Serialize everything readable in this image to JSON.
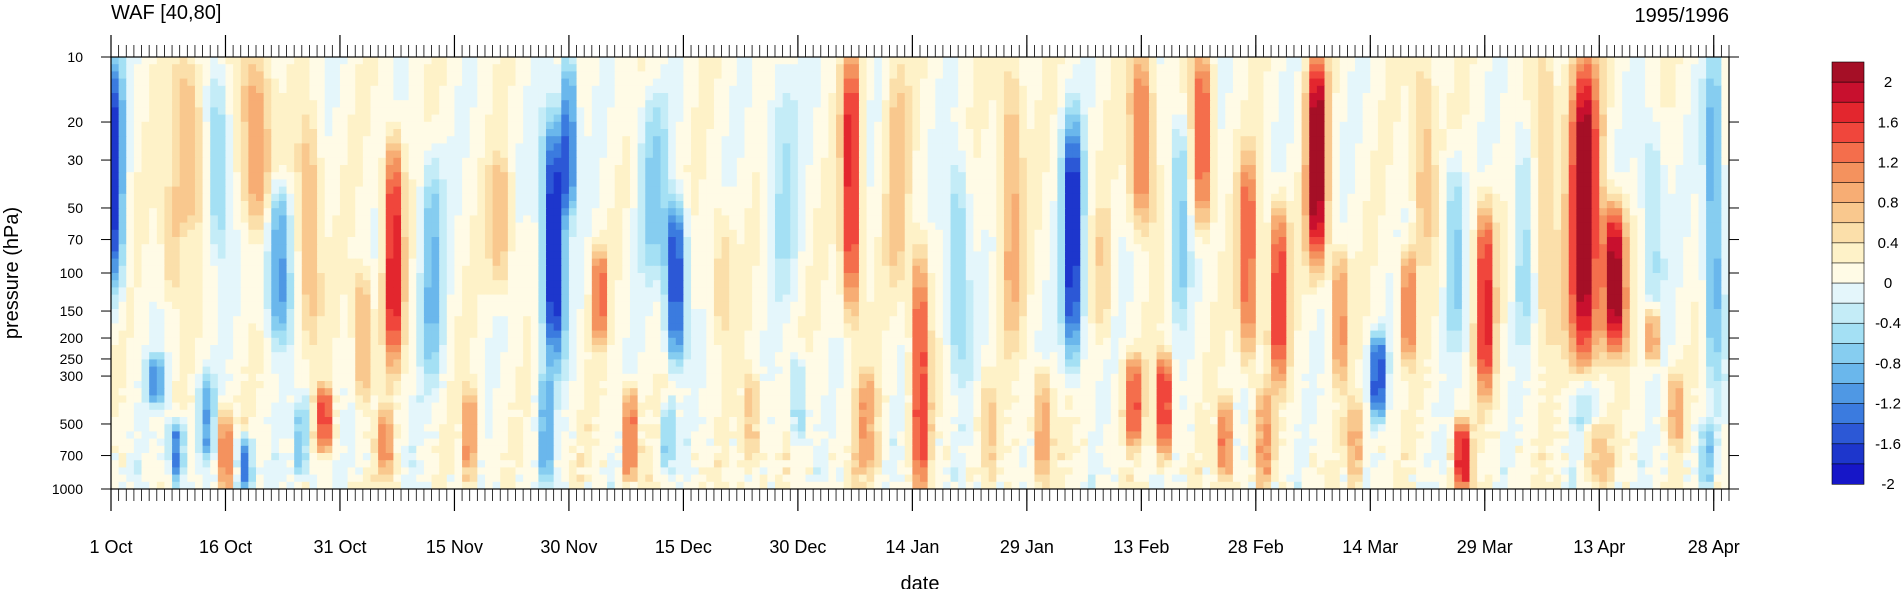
{
  "chart_data": {
    "type": "heatmap",
    "title_left": "WAF [40,80]",
    "title_right": "1995/1996",
    "xlabel": "date",
    "ylabel": "pressure (hPa)",
    "x_ticks": [
      "1 Oct",
      "16 Oct",
      "31 Oct",
      "15 Nov",
      "30 Nov",
      "15 Dec",
      "30 Dec",
      "14 Jan",
      "29 Jan",
      "13 Feb",
      "28 Feb",
      "14 Mar",
      "29 Mar",
      "13 Apr",
      "28 Apr"
    ],
    "x_tick_days": [
      0,
      15,
      30,
      45,
      60,
      75,
      90,
      105,
      120,
      135,
      150,
      165,
      180,
      195,
      210
    ],
    "x_range_days": [
      0,
      212
    ],
    "y_ticks": [
      10,
      20,
      30,
      50,
      70,
      100,
      150,
      200,
      250,
      300,
      500,
      700,
      1000
    ],
    "y_range": [
      10,
      1000
    ],
    "y_scale": "log",
    "colorbar": {
      "label_values": [
        "2",
        "1.6",
        "1.2",
        "0.8",
        "0.4",
        "0",
        "-0.4",
        "-0.8",
        "-1.2",
        "-1.6",
        "-2"
      ],
      "colors": [
        "#a50f26",
        "#c8102e",
        "#e3262e",
        "#f0463c",
        "#f46e4c",
        "#f4925e",
        "#f7ad74",
        "#f9c88e",
        "#fbdfaa",
        "#fef2c8",
        "#fffbe6",
        "#e4f6fb",
        "#c4ecf7",
        "#a4e0f4",
        "#86cdf0",
        "#6ab7ec",
        "#4f98e4",
        "#3b7bdf",
        "#2c58d6",
        "#1d36cc",
        "#1616c8"
      ]
    },
    "features": [
      {
        "day": 0.5,
        "p_top": 10,
        "p_bot": 120,
        "v": -1.7,
        "w": 1.2
      },
      {
        "day": 6,
        "p_top": 250,
        "p_bot": 400,
        "v": -1.2,
        "w": 1.2
      },
      {
        "day": 8,
        "p_top": 40,
        "p_bot": 130,
        "v": 0.6,
        "w": 1.4
      },
      {
        "day": 8.5,
        "p_top": 500,
        "p_bot": 900,
        "v": -1.5,
        "w": 1
      },
      {
        "day": 10,
        "p_top": 10,
        "p_bot": 60,
        "v": 0.8,
        "w": 2
      },
      {
        "day": 12.5,
        "p_top": 300,
        "p_bot": 700,
        "v": -1.0,
        "w": 1
      },
      {
        "day": 14,
        "p_top": 12,
        "p_bot": 80,
        "v": -0.8,
        "w": 1.5
      },
      {
        "day": 15,
        "p_top": 450,
        "p_bot": 1000,
        "v": 1.4,
        "w": 0.8
      },
      {
        "day": 17.5,
        "p_top": 600,
        "p_bot": 1000,
        "v": -1.5,
        "w": 1
      },
      {
        "day": 19,
        "p_top": 10,
        "p_bot": 60,
        "v": 1.0,
        "w": 2
      },
      {
        "day": 22,
        "p_top": 40,
        "p_bot": 200,
        "v": -1.3,
        "w": 1.5
      },
      {
        "day": 25,
        "p_top": 400,
        "p_bot": 900,
        "v": -0.9,
        "w": 1
      },
      {
        "day": 26,
        "p_top": 20,
        "p_bot": 200,
        "v": 0.8,
        "w": 1.5
      },
      {
        "day": 28,
        "p_top": 350,
        "p_bot": 650,
        "v": 1.6,
        "w": 1
      },
      {
        "day": 33,
        "p_top": 100,
        "p_bot": 400,
        "v": 0.9,
        "w": 1.2
      },
      {
        "day": 37,
        "p_top": 25,
        "p_bot": 250,
        "v": 1.8,
        "w": 1.2
      },
      {
        "day": 36,
        "p_top": 450,
        "p_bot": 900,
        "v": 1.0,
        "w": 1
      },
      {
        "day": 42,
        "p_top": 30,
        "p_bot": 300,
        "v": -0.9,
        "w": 1.5
      },
      {
        "day": 47,
        "p_top": 350,
        "p_bot": 900,
        "v": 1.1,
        "w": 1
      },
      {
        "day": 51,
        "p_top": 30,
        "p_bot": 120,
        "v": 0.7,
        "w": 1.5
      },
      {
        "day": 58,
        "p_top": 20,
        "p_bot": 250,
        "v": -2.1,
        "w": 1.5
      },
      {
        "day": 60,
        "p_top": 10,
        "p_bot": 50,
        "v": -1.5,
        "w": 1
      },
      {
        "day": 57,
        "p_top": 300,
        "p_bot": 900,
        "v": -1.1,
        "w": 1
      },
      {
        "day": 64,
        "p_top": 80,
        "p_bot": 200,
        "v": 1.3,
        "w": 1
      },
      {
        "day": 68,
        "p_top": 350,
        "p_bot": 900,
        "v": 1.4,
        "w": 1
      },
      {
        "day": 71,
        "p_top": 15,
        "p_bot": 100,
        "v": -0.7,
        "w": 2
      },
      {
        "day": 74,
        "p_top": 50,
        "p_bot": 250,
        "v": -1.9,
        "w": 1.3
      },
      {
        "day": 73,
        "p_top": 400,
        "p_bot": 800,
        "v": -0.8,
        "w": 1
      },
      {
        "day": 80,
        "p_top": 50,
        "p_bot": 200,
        "v": 0.5,
        "w": 1.5
      },
      {
        "day": 84,
        "p_top": 300,
        "p_bot": 800,
        "v": 0.7,
        "w": 1.2
      },
      {
        "day": 88,
        "p_top": 10,
        "p_bot": 120,
        "v": -0.5,
        "w": 2
      },
      {
        "day": 90,
        "p_top": 250,
        "p_bot": 600,
        "v": -0.8,
        "w": 1
      },
      {
        "day": 97,
        "p_top": 10,
        "p_bot": 150,
        "v": 1.8,
        "w": 1.2
      },
      {
        "day": 99,
        "p_top": 300,
        "p_bot": 900,
        "v": 0.8,
        "w": 1.5
      },
      {
        "day": 103,
        "p_top": 10,
        "p_bot": 120,
        "v": 0.6,
        "w": 1.5
      },
      {
        "day": 106,
        "p_top": 80,
        "p_bot": 1000,
        "v": 1.6,
        "w": 1.1
      },
      {
        "day": 111,
        "p_top": 30,
        "p_bot": 300,
        "v": -0.8,
        "w": 1.5
      },
      {
        "day": 115,
        "p_top": 300,
        "p_bot": 800,
        "v": 0.5,
        "w": 1
      },
      {
        "day": 118,
        "p_top": 10,
        "p_bot": 200,
        "v": 0.8,
        "w": 1.5
      },
      {
        "day": 122,
        "p_top": 300,
        "p_bot": 900,
        "v": 1.0,
        "w": 1.2
      },
      {
        "day": 126,
        "p_top": 20,
        "p_bot": 250,
        "v": -2.0,
        "w": 1.3
      },
      {
        "day": 130,
        "p_top": 50,
        "p_bot": 200,
        "v": 0.5,
        "w": 1
      },
      {
        "day": 135,
        "p_top": 10,
        "p_bot": 60,
        "v": 1.3,
        "w": 1.5
      },
      {
        "day": 134,
        "p_top": 250,
        "p_bot": 600,
        "v": 1.3,
        "w": 1.2
      },
      {
        "day": 138,
        "p_top": 250,
        "p_bot": 700,
        "v": 2.0,
        "w": 0.9
      },
      {
        "day": 140,
        "p_top": 20,
        "p_bot": 150,
        "v": -0.9,
        "w": 1.2
      },
      {
        "day": 143,
        "p_top": 10,
        "p_bot": 60,
        "v": 1.5,
        "w": 1.2
      },
      {
        "day": 146,
        "p_top": 400,
        "p_bot": 900,
        "v": 1.3,
        "w": 1
      },
      {
        "day": 149,
        "p_top": 30,
        "p_bot": 250,
        "v": 1.4,
        "w": 1.2
      },
      {
        "day": 153,
        "p_top": 50,
        "p_bot": 300,
        "v": 1.6,
        "w": 1.2
      },
      {
        "day": 151,
        "p_top": 350,
        "p_bot": 900,
        "v": 0.9,
        "w": 1.2
      },
      {
        "day": 158,
        "p_top": 10,
        "p_bot": 90,
        "v": 2.2,
        "w": 1.3
      },
      {
        "day": 161,
        "p_top": 80,
        "p_bot": 300,
        "v": 1.1,
        "w": 1
      },
      {
        "day": 166,
        "p_top": 200,
        "p_bot": 450,
        "v": -1.8,
        "w": 1
      },
      {
        "day": 163,
        "p_top": 400,
        "p_bot": 900,
        "v": 0.8,
        "w": 1.2
      },
      {
        "day": 170,
        "p_top": 80,
        "p_bot": 250,
        "v": 1.3,
        "w": 1
      },
      {
        "day": 172,
        "p_top": 10,
        "p_bot": 80,
        "v": 0.7,
        "w": 1.5
      },
      {
        "day": 176,
        "p_top": 30,
        "p_bot": 200,
        "v": -0.8,
        "w": 1.2
      },
      {
        "day": 177,
        "p_top": 500,
        "p_bot": 1000,
        "v": 1.9,
        "w": 1
      },
      {
        "day": 180,
        "p_top": 50,
        "p_bot": 350,
        "v": 1.7,
        "w": 1.2
      },
      {
        "day": 185,
        "p_top": 20,
        "p_bot": 200,
        "v": -0.6,
        "w": 1.3
      },
      {
        "day": 188,
        "p_top": 10,
        "p_bot": 200,
        "v": 0.6,
        "w": 1.5
      },
      {
        "day": 193,
        "p_top": 10,
        "p_bot": 280,
        "v": 2.2,
        "w": 2
      },
      {
        "day": 197,
        "p_top": 50,
        "p_bot": 220,
        "v": 2.2,
        "w": 1.5
      },
      {
        "day": 193,
        "p_top": 300,
        "p_bot": 500,
        "v": -0.6,
        "w": 2
      },
      {
        "day": 195,
        "p_top": 500,
        "p_bot": 900,
        "v": 0.6,
        "w": 1.5
      },
      {
        "day": 202,
        "p_top": 20,
        "p_bot": 150,
        "v": -0.6,
        "w": 1.5
      },
      {
        "day": 202,
        "p_top": 150,
        "p_bot": 250,
        "v": 1.3,
        "w": 0.8
      },
      {
        "day": 205,
        "p_top": 300,
        "p_bot": 600,
        "v": 0.9,
        "w": 1
      },
      {
        "day": 210,
        "p_top": 10,
        "p_bot": 300,
        "v": -1.2,
        "w": 1.2
      },
      {
        "day": 209,
        "p_top": 500,
        "p_bot": 900,
        "v": -0.8,
        "w": 1
      }
    ]
  }
}
